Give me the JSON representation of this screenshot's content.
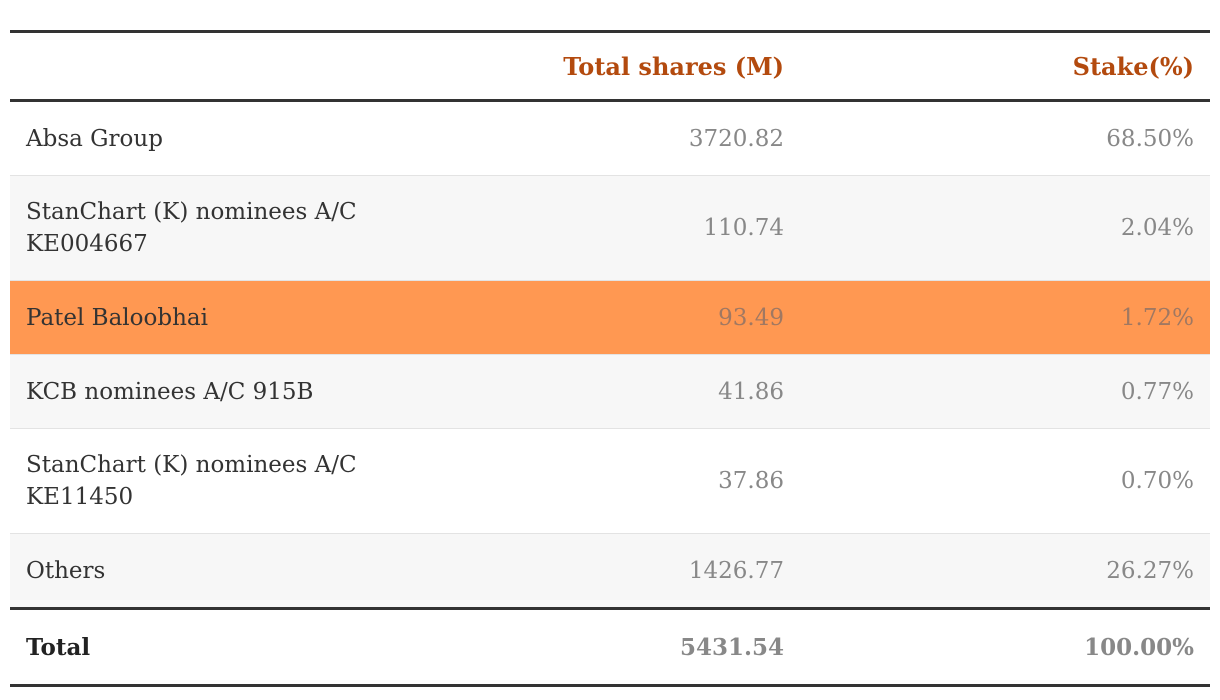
{
  "table": {
    "headers": {
      "name": "",
      "shares": "Total shares (M)",
      "stake": "Stake(%)"
    },
    "rows": [
      {
        "name": "Absa Group",
        "shares": "3720.82",
        "stake": "68.50%"
      },
      {
        "name": "StanChart (K) nominees A/C KE004667",
        "shares": "110.74",
        "stake": "2.04%"
      },
      {
        "name": "Patel Baloobhai",
        "shares": "93.49",
        "stake": "1.72%"
      },
      {
        "name": "KCB nominees A/C 915B",
        "shares": "41.86",
        "stake": "0.77%"
      },
      {
        "name": "StanChart (K) nominees A/C KE11450",
        "shares": "37.86",
        "stake": "0.70%"
      },
      {
        "name": "Others",
        "shares": "1426.77",
        "stake": "26.27%"
      }
    ],
    "total": {
      "name": "Total",
      "shares": "5431.54",
      "stake": "100.00%"
    },
    "highlight_row": "Patel Baloobhai",
    "colors": {
      "header_text": "#b34a0e",
      "highlight_bg": "#ff9852",
      "rule": "#333333"
    }
  }
}
